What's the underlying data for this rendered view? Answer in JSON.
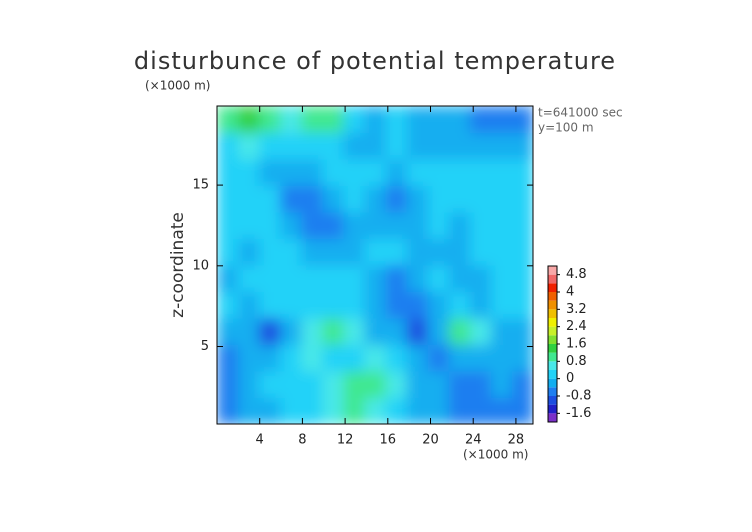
{
  "chart_data": {
    "type": "contour",
    "title": "disturbunce of potential temperature",
    "y_unit": "(×1000 m)",
    "x_unit": "(×1000 m)",
    "ylabel": "z-coordinate",
    "annotations": [
      "t=641000 sec",
      "y=100 m"
    ],
    "xlim": [
      0,
      29.6
    ],
    "ylim": [
      0.2,
      19.9
    ],
    "xticks": [
      4,
      8,
      12,
      16,
      20,
      24,
      28
    ],
    "yticks": [
      5,
      10,
      15
    ],
    "z": [
      [
        -0.6,
        -0.4,
        -0.2,
        0,
        0,
        0.4,
        0.8,
        0.6,
        0.2,
        -0.2,
        -0.4,
        -0.6,
        -0.8,
        -0.6,
        -0.6
      ],
      [
        -0.6,
        -0.2,
        0,
        0.2,
        0.2,
        0.6,
        1.0,
        1.0,
        0.4,
        -0.2,
        -0.4,
        -0.6,
        -0.6,
        -0.4,
        -0.6
      ],
      [
        -0.6,
        -0.4,
        -0.2,
        0.2,
        0.4,
        0,
        0.2,
        0.4,
        0,
        -0.2,
        -0.6,
        -0.4,
        -0.2,
        -0.4,
        -0.4
      ],
      [
        -0.4,
        -0.4,
        -1.2,
        -0.4,
        0.6,
        0.8,
        0.6,
        -0.2,
        -0.4,
        -1.2,
        -0.4,
        0.8,
        0.6,
        -0.2,
        -0.4
      ],
      [
        0,
        -0.2,
        0,
        0,
        0.2,
        0,
        0,
        -0.2,
        -0.8,
        -0.8,
        -0.4,
        0,
        -0.2,
        0,
        0
      ],
      [
        -0.2,
        0,
        0.2,
        0,
        0,
        0,
        0,
        -0.2,
        -0.6,
        -0.4,
        0,
        -0.4,
        -0.2,
        0,
        0
      ],
      [
        0,
        -0.2,
        0,
        0,
        -0.2,
        -0.4,
        -0.2,
        0,
        0,
        -0.4,
        -0.2,
        -0.4,
        0,
        0.2,
        0
      ],
      [
        0.2,
        0,
        0,
        -0.2,
        -0.6,
        -0.6,
        -0.4,
        -0.2,
        -0.4,
        -0.4,
        0,
        -0.2,
        0,
        0.2,
        0.2
      ],
      [
        0,
        0,
        0,
        -0.6,
        -0.6,
        -0.2,
        0.2,
        -0.4,
        -0.6,
        -0.2,
        0,
        0,
        0.2,
        0.2,
        0
      ],
      [
        0,
        0,
        -0.2,
        -0.4,
        -0.2,
        0,
        0.2,
        0,
        -0.4,
        0,
        0,
        0.2,
        0.2,
        0,
        0
      ],
      [
        0.2,
        0.4,
        0.2,
        0,
        0.2,
        0,
        -0.2,
        -0.4,
        0,
        -0.2,
        -0.4,
        -0.4,
        -0.2,
        -0.4,
        -0.2
      ],
      [
        0.8,
        1.2,
        1.0,
        0.4,
        1.0,
        0.8,
        0.2,
        -0.2,
        0,
        -0.4,
        -0.2,
        -0.4,
        -0.6,
        -0.8,
        -0.6
      ]
    ],
    "levels": [
      -2.0,
      -1.6,
      -1.2,
      -0.8,
      -0.4,
      0,
      0.4,
      0.8,
      1.2,
      1.6,
      2.0,
      2.4,
      2.8,
      3.2,
      3.6,
      4.0,
      4.4,
      4.8,
      5.2
    ],
    "colors": [
      "#7a30c8",
      "#2020c8",
      "#1c4ee0",
      "#1e7ef0",
      "#12aef0",
      "#22d2f8",
      "#48e8e8",
      "#40e890",
      "#30d040",
      "#80e030",
      "#c8f028",
      "#f0f000",
      "#f0c000",
      "#f09000",
      "#f06000",
      "#f02000",
      "#f06868",
      "#f8a8a8"
    ],
    "cticks": [
      -1.6,
      -0.8,
      0,
      0.8,
      1.6,
      2.4,
      3.2,
      4,
      4.8
    ]
  }
}
